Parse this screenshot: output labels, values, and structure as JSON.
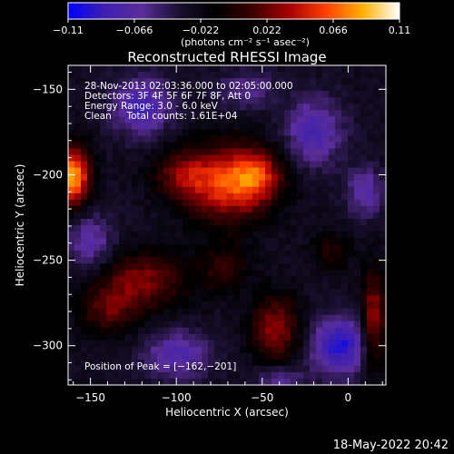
{
  "chart_data": {
    "type": "heatmap",
    "title": "Reconstructed RHESSI Image",
    "xlabel": "Heliocentric X (arcsec)",
    "ylabel": "Heliocentric Y (arcsec)",
    "xlim": [
      -163,
      22
    ],
    "ylim": [
      -323,
      -136
    ],
    "x_ticks": [
      -150,
      -100,
      -50,
      0
    ],
    "y_ticks": [
      -150,
      -200,
      -250,
      -300
    ],
    "x_tick_labels": [
      "−150",
      "−100",
      "−50",
      "0"
    ],
    "y_tick_labels": [
      "−150",
      "−200",
      "−250",
      "−300"
    ],
    "colorbar": {
      "range": [
        -0.11,
        0.11
      ],
      "ticks": [
        -0.11,
        -0.066,
        -0.022,
        0.022,
        0.066,
        0.11
      ],
      "tick_labels": [
        "−0.11",
        "−0.066",
        "−0.022",
        "0.022",
        "0.066",
        "0.11"
      ],
      "units_label": "(photons cm⁻² s⁻¹ asec⁻²)"
    },
    "annotations": [
      "28-Nov-2013 02:03:36.000 to 02:05:00.000",
      "Detectors: 3F 4F 5F 6F 7F 8F, Att 0",
      "Energy Range: 3.0 - 6.0 keV",
      "Clean     Total counts: 1.61E+04"
    ],
    "peak_label": "Position of Peak = [−162,−201]",
    "blobs": [
      {
        "x": -70,
        "y": -205,
        "sx": 18,
        "sy": 16,
        "a": 0.085
      },
      {
        "x": -52,
        "y": -200,
        "sx": 10,
        "sy": 10,
        "a": 0.05
      },
      {
        "x": -98,
        "y": -200,
        "sx": 12,
        "sy": 10,
        "a": 0.04
      },
      {
        "x": -160,
        "y": -201,
        "sx": 7,
        "sy": 12,
        "a": 0.11
      },
      {
        "x": -120,
        "y": -262,
        "sx": 18,
        "sy": 12,
        "a": 0.055
      },
      {
        "x": -140,
        "y": -280,
        "sx": 12,
        "sy": 10,
        "a": 0.04
      },
      {
        "x": -42,
        "y": -290,
        "sx": 10,
        "sy": 14,
        "a": 0.06
      },
      {
        "x": -72,
        "y": -255,
        "sx": 10,
        "sy": 10,
        "a": 0.035
      },
      {
        "x": 15,
        "y": -285,
        "sx": 5,
        "sy": 20,
        "a": 0.065
      },
      {
        "x": -10,
        "y": -245,
        "sx": 8,
        "sy": 8,
        "a": 0.03
      },
      {
        "x": -120,
        "y": -160,
        "sx": 12,
        "sy": 12,
        "a": -0.055
      },
      {
        "x": -20,
        "y": -175,
        "sx": 12,
        "sy": 14,
        "a": -0.05
      },
      {
        "x": -5,
        "y": -300,
        "sx": 12,
        "sy": 12,
        "a": -0.07
      },
      {
        "x": -100,
        "y": -305,
        "sx": 14,
        "sy": 10,
        "a": -0.045
      },
      {
        "x": -150,
        "y": -240,
        "sx": 10,
        "sy": 12,
        "a": -0.04
      },
      {
        "x": 10,
        "y": -210,
        "sx": 8,
        "sy": 10,
        "a": -0.04
      },
      {
        "x": -60,
        "y": -150,
        "sx": 12,
        "sy": 8,
        "a": -0.03
      },
      {
        "x": -40,
        "y": -320,
        "sx": 10,
        "sy": 6,
        "a": -0.035
      }
    ]
  },
  "timestamp": "18-May-2022 20:42",
  "colors": {
    "colormap": [
      "#0000ff",
      "#3d1fb0",
      "#5a2d9a",
      "#1a1030",
      "#000000",
      "#3a0000",
      "#a80000",
      "#ff4000",
      "#ffb000",
      "#ffffff"
    ]
  }
}
